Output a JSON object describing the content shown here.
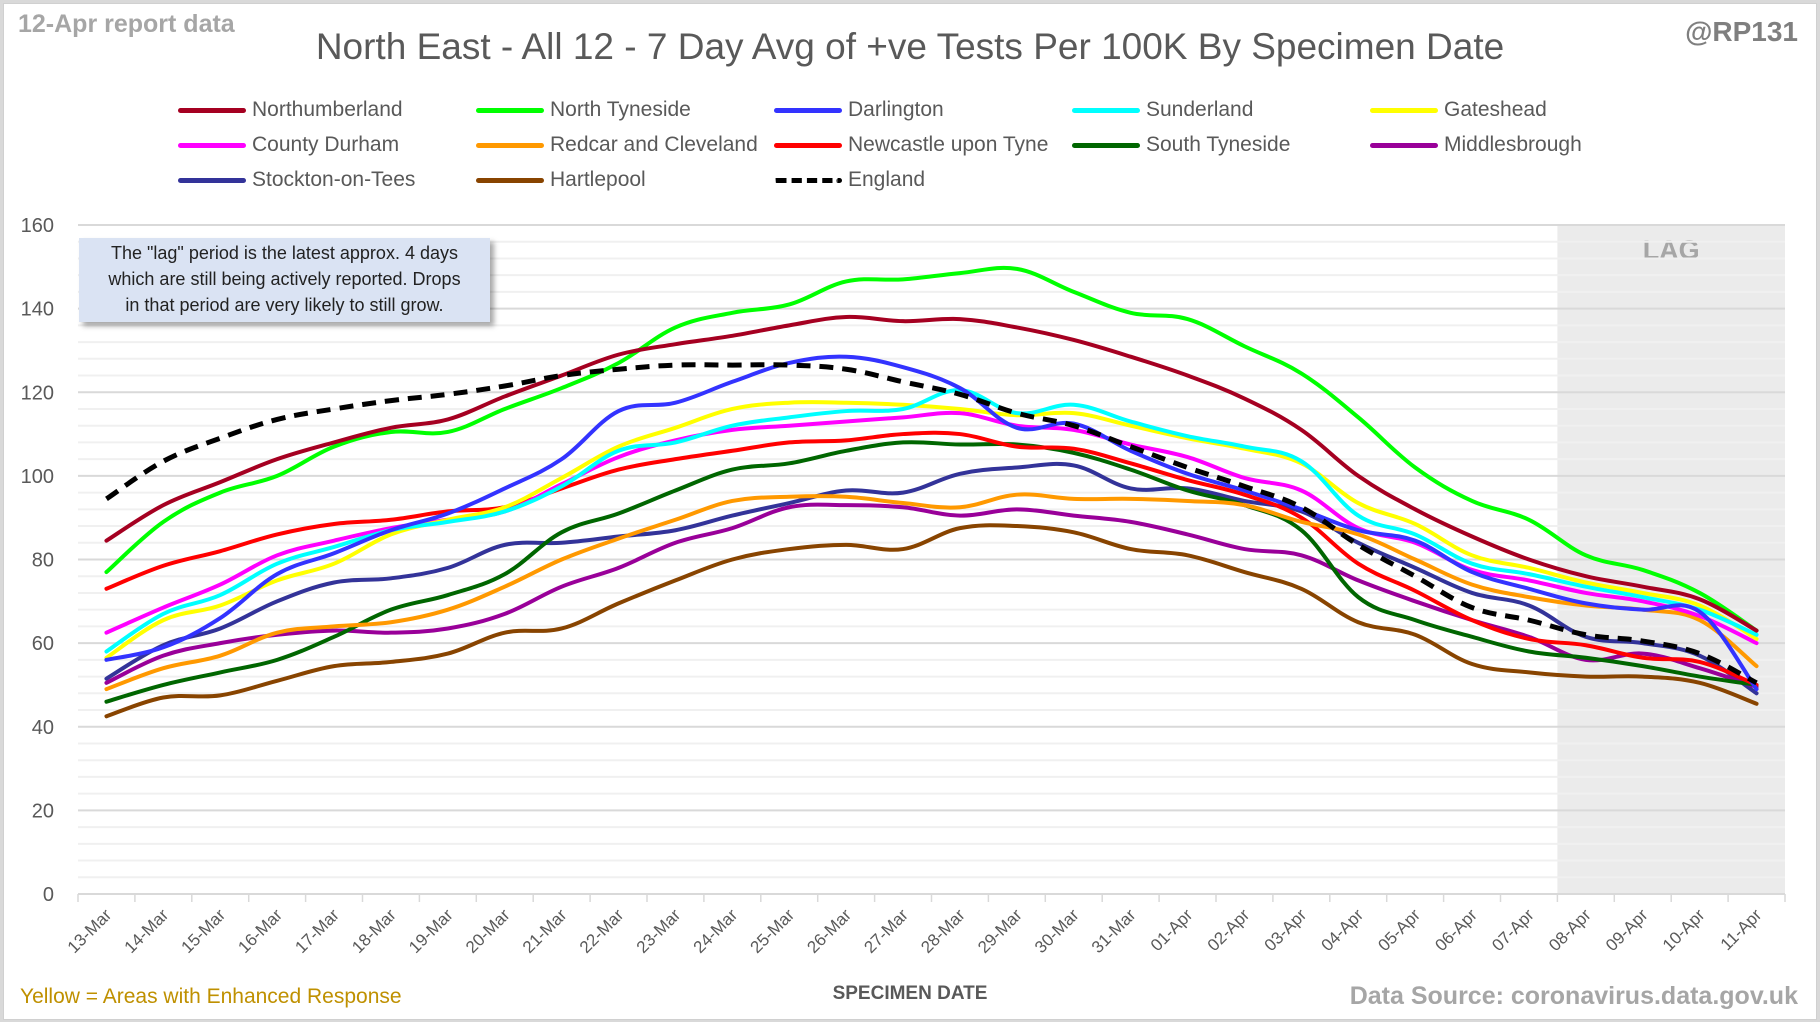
{
  "header": {
    "report_label": "12-Apr report data",
    "handle": "@RP131"
  },
  "footer": {
    "enhanced_note": "Yellow = Areas with Enhanced Response",
    "source": "Data Source: coronavirus.data.gov.uk"
  },
  "note_box": {
    "lines": [
      "The \"lag\" period is the latest approx. 4 days",
      "which are still being actively reported.  Drops",
      "in that period are very likely to still grow."
    ]
  },
  "chart_data": {
    "type": "line",
    "title": "North East - All 12 - 7 Day Avg of +ve Tests Per 100K By Specimen Date",
    "xlabel": "SPECIMEN DATE",
    "ylabel": "",
    "ylim": [
      0,
      160
    ],
    "yticks": [
      0,
      20,
      40,
      60,
      80,
      100,
      120,
      140,
      160
    ],
    "grid": true,
    "legend_position": "top",
    "lag_region": {
      "label": "LAG",
      "from": "08-Apr",
      "to": "11-Apr",
      "color": "#ebebeb"
    },
    "categories": [
      "13-Mar",
      "14-Mar",
      "15-Mar",
      "16-Mar",
      "17-Mar",
      "18-Mar",
      "19-Mar",
      "20-Mar",
      "21-Mar",
      "22-Mar",
      "23-Mar",
      "24-Mar",
      "25-Mar",
      "26-Mar",
      "27-Mar",
      "28-Mar",
      "29-Mar",
      "30-Mar",
      "31-Mar",
      "01-Apr",
      "02-Apr",
      "03-Apr",
      "04-Apr",
      "05-Apr",
      "06-Apr",
      "07-Apr",
      "08-Apr",
      "09-Apr",
      "10-Apr",
      "11-Apr"
    ],
    "series": [
      {
        "name": "Northumberland",
        "color": "#a50021",
        "dashed": false,
        "values": [
          84.5,
          93,
          98.5,
          104,
          108,
          111.5,
          113.5,
          119,
          124,
          129,
          131.5,
          133.5,
          136,
          138,
          137,
          137.5,
          135.5,
          132.5,
          128.5,
          124,
          118.5,
          111,
          100,
          92,
          85.5,
          80,
          76,
          73.5,
          70.5,
          63
        ]
      },
      {
        "name": "North Tyneside",
        "color": "#00ff00",
        "dashed": false,
        "values": [
          77,
          89,
          96,
          100,
          107,
          110.5,
          110.5,
          116,
          121,
          127,
          135.5,
          139,
          141,
          146.5,
          147,
          148.5,
          149.5,
          144,
          139,
          137.5,
          131,
          124.5,
          114,
          102,
          94,
          89.5,
          81,
          77.5,
          72,
          63
        ]
      },
      {
        "name": "Darlington",
        "color": "#3333ff",
        "dashed": false,
        "values": [
          56,
          59,
          66,
          76.5,
          81.5,
          87,
          91,
          97,
          104,
          115.5,
          117.5,
          122.5,
          127,
          128.5,
          126,
          121,
          111.5,
          112.5,
          106,
          100.5,
          96.5,
          92,
          87,
          84.5,
          77,
          73,
          69.5,
          68,
          67.5,
          49
        ]
      },
      {
        "name": "Sunderland",
        "color": "#00ffff",
        "dashed": false,
        "values": [
          58,
          67,
          71.5,
          79,
          83,
          87,
          89,
          91.5,
          97.5,
          106,
          108,
          112,
          114,
          115.5,
          116,
          120.5,
          115,
          117,
          113,
          109.5,
          107,
          103.5,
          90.5,
          86,
          79,
          76.5,
          73.5,
          71,
          68,
          62
        ]
      },
      {
        "name": "Gateshead",
        "color": "#ffff00",
        "dashed": false,
        "values": [
          56.5,
          65.5,
          69,
          75,
          79,
          86,
          89.5,
          92.5,
          99.5,
          107,
          111.5,
          116,
          117.5,
          117.5,
          117,
          116,
          114.5,
          115,
          112,
          109,
          106.5,
          103,
          93.5,
          88.5,
          81,
          78,
          74.5,
          72,
          69,
          61
        ]
      },
      {
        "name": "County Durham",
        "color": "#ff00ff",
        "dashed": false,
        "values": [
          62.5,
          68.5,
          74,
          81,
          84.5,
          87.5,
          89.5,
          91.5,
          98,
          104.5,
          108.5,
          111,
          112,
          113,
          114,
          115,
          112,
          111,
          107.5,
          104.5,
          99.5,
          96.5,
          87.5,
          84,
          77.5,
          75,
          72,
          70,
          66.5,
          60
        ]
      },
      {
        "name": "Redcar and Cleveland",
        "color": "#ff9900",
        "dashed": false,
        "values": [
          49,
          54,
          57,
          62.5,
          64,
          65,
          68,
          73.5,
          80,
          85,
          89.5,
          94,
          95,
          95,
          93.5,
          92.5,
          95.5,
          94.5,
          94.5,
          94,
          93,
          89,
          86,
          80,
          74,
          71,
          69,
          68,
          65.5,
          54.5
        ]
      },
      {
        "name": "Newcastle upon Tyne",
        "color": "#ff0000",
        "dashed": false,
        "values": [
          73,
          78.5,
          82,
          86,
          88.5,
          89.5,
          91.5,
          92.5,
          97,
          101.5,
          104,
          106,
          108,
          108.5,
          110,
          110,
          107,
          106.5,
          103,
          99,
          95.5,
          90,
          79,
          72.5,
          65.5,
          61,
          59.5,
          56.5,
          55.5,
          50
        ]
      },
      {
        "name": "South Tyneside",
        "color": "#006600",
        "dashed": false,
        "values": [
          46,
          50,
          53,
          56,
          61.5,
          68,
          71.5,
          76.5,
          86.5,
          91,
          96.5,
          101.5,
          103,
          106,
          108,
          107.5,
          107.5,
          105.5,
          101.5,
          96.5,
          93,
          87,
          71,
          65.5,
          61.5,
          58,
          56.5,
          54.5,
          52,
          50
        ]
      },
      {
        "name": "Middlesbrough",
        "color": "#990099",
        "dashed": false,
        "values": [
          50.5,
          57,
          60,
          62,
          63,
          62.5,
          63.5,
          67,
          73.5,
          78,
          84,
          87.5,
          92.5,
          93,
          92.5,
          90.5,
          92,
          90.5,
          89,
          86,
          82.5,
          81,
          75,
          70,
          65.5,
          61.5,
          56,
          57.5,
          54,
          49.5
        ]
      },
      {
        "name": "Stockton-on-Tees",
        "color": "#333399",
        "dashed": false,
        "values": [
          51.5,
          59.5,
          63.5,
          70,
          74.5,
          75.5,
          78,
          83.5,
          84,
          85.5,
          87,
          90.5,
          93.5,
          96.5,
          96,
          100.5,
          102,
          102.5,
          97,
          97,
          94,
          91.5,
          84,
          78,
          72,
          69,
          61.5,
          60,
          57,
          48
        ]
      },
      {
        "name": "Hartlepool",
        "color": "#884400",
        "dashed": false,
        "values": [
          42.5,
          47,
          47.5,
          51,
          54.5,
          55.5,
          57.5,
          62.5,
          63.5,
          69.5,
          75,
          80,
          82.5,
          83.5,
          82.5,
          87.5,
          88,
          86.5,
          82.5,
          81,
          77,
          73,
          65,
          62,
          55,
          53,
          52,
          52,
          50.5,
          45.5
        ]
      },
      {
        "name": "England",
        "color": "#000000",
        "dashed": true,
        "values": [
          94.5,
          103.5,
          109,
          113.5,
          116,
          118,
          119.5,
          121.5,
          124,
          125.5,
          126.5,
          126.5,
          126.5,
          125.5,
          122.5,
          119.5,
          115,
          112,
          107,
          102,
          97.5,
          92.5,
          83.5,
          76,
          68.5,
          65.5,
          62,
          60.5,
          57.5,
          50.5
        ]
      }
    ]
  }
}
